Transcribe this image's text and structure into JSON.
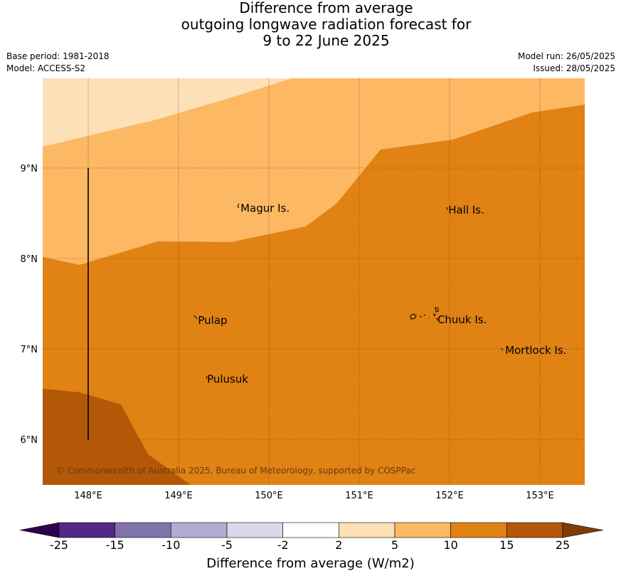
{
  "title": {
    "line1": "Difference from average",
    "line2": "outgoing longwave radiation forecast for",
    "line3": "9 to 22 June 2025"
  },
  "meta_left": {
    "base_period": "Base period: 1981-2018",
    "model": "Model: ACCESS-S2"
  },
  "meta_right": {
    "model_run": "Model run: 26/05/2025",
    "issued": "Issued: 28/05/2025"
  },
  "map": {
    "lon_range": [
      147.5,
      153.5
    ],
    "lat_range": [
      5.5,
      9.99
    ],
    "lon_ticks": [
      {
        "value": 148,
        "label": "148°E"
      },
      {
        "value": 149,
        "label": "149°E"
      },
      {
        "value": 150,
        "label": "150°E"
      },
      {
        "value": 151,
        "label": "151°E"
      },
      {
        "value": 152,
        "label": "152°E"
      },
      {
        "value": 153,
        "label": "153°E"
      }
    ],
    "lat_ticks": [
      {
        "value": 9,
        "label": "9°N"
      },
      {
        "value": 8,
        "label": "8°N"
      },
      {
        "value": 7,
        "label": "7°N"
      },
      {
        "value": 6,
        "label": "6°N"
      }
    ],
    "places": [
      {
        "name": "Magur Is.",
        "lon": 149.67,
        "lat": 8.57
      },
      {
        "name": "Hall Is.",
        "lon": 151.97,
        "lat": 8.55
      },
      {
        "name": "Pulap",
        "lon": 149.2,
        "lat": 7.33
      },
      {
        "name": "Chuuk Is.",
        "lon": 151.85,
        "lat": 7.34
      },
      {
        "name": "Mortlock Is.",
        "lon": 152.6,
        "lat": 7.0
      },
      {
        "name": "Pulusuk",
        "lon": 149.3,
        "lat": 6.68
      }
    ],
    "copyright": "© Commonwealth of Australia 2025, Bureau of Meteorology, supported by COSPPac",
    "colors": {
      "band_2_5": "#fee0b6",
      "band_5_10": "#fdb863",
      "band_10_15": "#e08214",
      "band_15_25": "#b35806",
      "grid": "#7a4a20"
    }
  },
  "colorbar": {
    "title": "Difference from average (W/m2)",
    "ticks": [
      "-25",
      "-15",
      "-10",
      "-5",
      "-2",
      "2",
      "5",
      "10",
      "15",
      "25"
    ],
    "colors": [
      "#2d004b",
      "#542788",
      "#8073ac",
      "#b2abd2",
      "#d8daeb",
      "#ffffff",
      "#fee0b6",
      "#fdb863",
      "#e08214",
      "#b35806",
      "#7f3b08"
    ]
  }
}
